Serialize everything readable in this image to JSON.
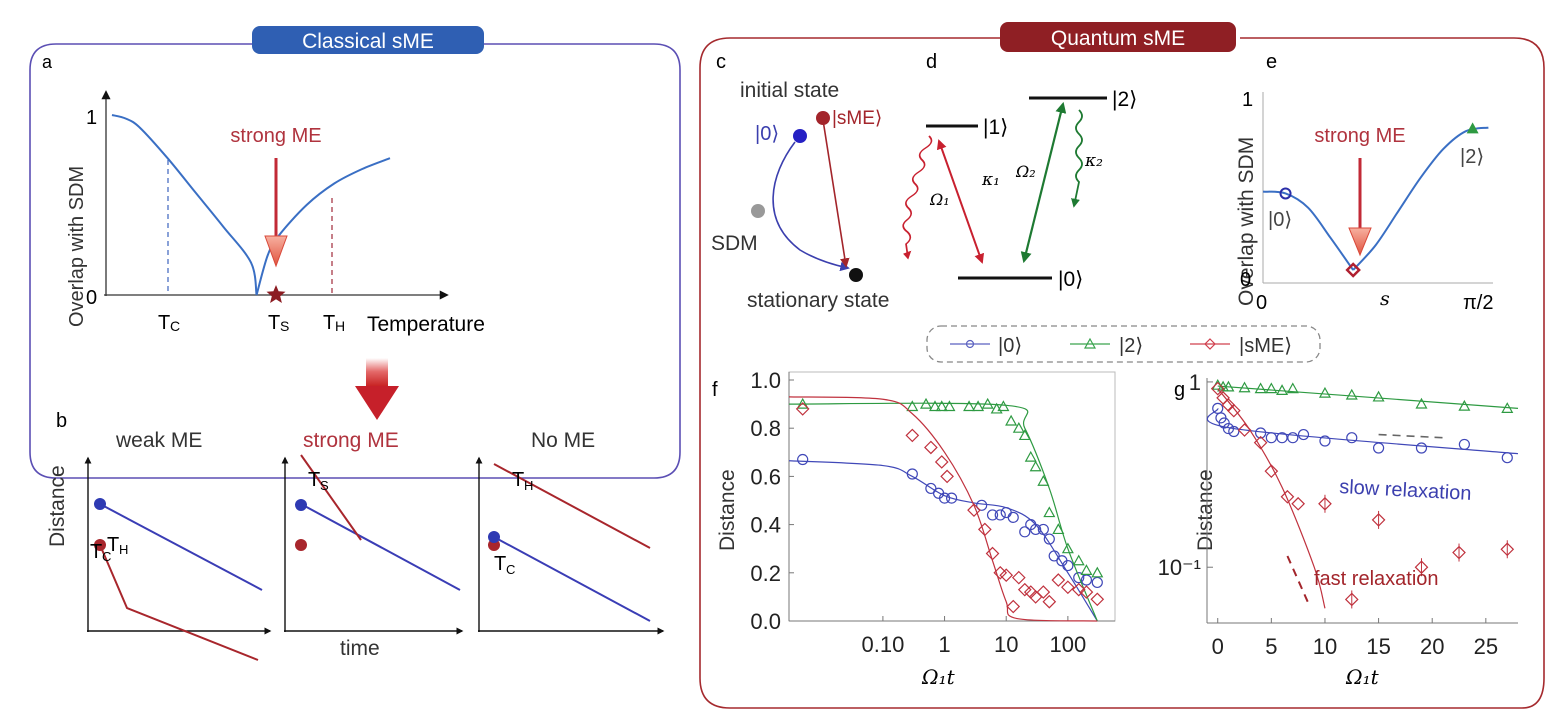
{
  "colors": {
    "classical_accent": "#2b5cad",
    "quantum_accent": "#9b2226",
    "blue": "#3b3fae",
    "red": "#b5282e",
    "green": "#2e8b3c",
    "curve_blue": "#3a6fc4",
    "gray": "#999999"
  },
  "classical": {
    "header": "Classical sME",
    "panel_a": {
      "label": "a",
      "ylabel": "Overlap with SDM",
      "y_ticks": [
        "0",
        "1"
      ],
      "x_ticks": [
        {
          "main": "T",
          "sub": "C"
        },
        {
          "main": "T",
          "sub": "S"
        },
        {
          "main": "T",
          "sub": "H"
        }
      ],
      "xlabel": "Temperature",
      "annotation": "strong ME"
    },
    "panel_b": {
      "label": "b",
      "ylabel": "Distance",
      "xlabel": "time",
      "subpanels": [
        {
          "title": "weak ME",
          "hot": {
            "main": "T",
            "sub": "H"
          },
          "cold": {
            "main": "T",
            "sub": "C"
          }
        },
        {
          "title": "strong ME",
          "hot": {
            "main": "T",
            "sub": "S"
          }
        },
        {
          "title": "No ME",
          "hot": {
            "main": "T",
            "sub": "H"
          },
          "cold": {
            "main": "T",
            "sub": "C"
          }
        }
      ]
    }
  },
  "quantum": {
    "header": "Quantum sME",
    "panel_c": {
      "label": "c",
      "initial_state": "initial state",
      "state0": "|0⟩",
      "stateSME": "|sME⟩",
      "sdm": "SDM",
      "stationary": "stationary state"
    },
    "panel_d": {
      "label": "d",
      "levels": [
        "|1⟩",
        "|2⟩",
        "|0⟩"
      ],
      "omega1": "Ω₁",
      "omega2": "Ω₂",
      "kappa1": "κ₁",
      "kappa2": "κ₂"
    },
    "panel_e": {
      "label": "e",
      "ylabel": "Overlap with SDM",
      "y_ticks": [
        "0",
        "1"
      ],
      "x_ticks": [
        "0",
        "π/2"
      ],
      "xlabel": "s",
      "annotation": "strong ME",
      "marker_labels": [
        "|0⟩",
        "|2⟩"
      ]
    },
    "legend": [
      "|0⟩",
      "|2⟩",
      "|sME⟩"
    ],
    "panel_f": {
      "label": "f",
      "ylabel": "Distance",
      "xlabel": "Ω₁t"
    },
    "panel_g": {
      "label": "g",
      "ylabel": "Distance",
      "xlabel": "Ω₁t",
      "slow_label": "slow relaxation",
      "fast_label": "fast relaxation"
    }
  },
  "chart_data": [
    {
      "id": "a",
      "type": "line",
      "title": "",
      "xlabel": "Temperature",
      "ylabel": "Overlap with SDM",
      "ylim": [
        0,
        1
      ],
      "x_tick_labels": [
        "TC",
        "TS",
        "TH"
      ],
      "series": [
        {
          "name": "overlap",
          "x": [
            0,
            0.05,
            0.1,
            0.2,
            0.3,
            0.4,
            0.5,
            0.52,
            0.56,
            0.6,
            0.7,
            0.8,
            0.9,
            1.0
          ],
          "values": [
            1.0,
            0.98,
            0.93,
            0.76,
            0.57,
            0.38,
            0.18,
            0.0,
            0.22,
            0.33,
            0.5,
            0.62,
            0.7,
            0.76
          ]
        }
      ],
      "annotations": [
        "strong ME at TS"
      ]
    },
    {
      "id": "e",
      "type": "line",
      "xlabel": "s",
      "ylabel": "Overlap with SDM",
      "ylim": [
        0,
        1
      ],
      "x_tick_labels": [
        "0",
        "π/2"
      ],
      "series": [
        {
          "name": "overlap",
          "x": [
            0,
            0.1,
            0.2,
            0.3,
            0.4,
            0.5,
            0.6,
            0.7,
            0.8,
            0.9,
            1.0
          ],
          "values": [
            0.44,
            0.43,
            0.35,
            0.18,
            0.0,
            0.14,
            0.33,
            0.52,
            0.68,
            0.78,
            0.8
          ]
        }
      ],
      "markers": [
        {
          "label": "|0⟩",
          "x": 0.1,
          "y": 0.43
        },
        {
          "label": "|sME⟩",
          "x": 0.4,
          "y": 0.0
        },
        {
          "label": "|2⟩",
          "x": 0.93,
          "y": 0.79
        }
      ]
    },
    {
      "id": "f",
      "type": "scatter",
      "xlabel": "Ω₁t",
      "ylabel": "Distance",
      "xscale": "log",
      "xlim": [
        0.003,
        400
      ],
      "ylim": [
        0,
        1.0
      ],
      "y_ticks": [
        "0.0",
        "0.2",
        "0.4",
        "0.6",
        "0.8",
        "1.0"
      ],
      "x_ticks": [
        "0.10",
        "1",
        "10",
        "100"
      ],
      "series": [
        {
          "name": "|0⟩",
          "x": [
            0.005,
            0.3,
            0.6,
            0.8,
            1.0,
            1.3,
            4,
            6,
            8,
            10,
            13,
            20,
            25,
            30,
            40,
            50,
            60,
            80,
            100,
            150,
            200,
            300
          ],
          "values": [
            0.67,
            0.61,
            0.55,
            0.53,
            0.51,
            0.51,
            0.48,
            0.44,
            0.44,
            0.45,
            0.43,
            0.37,
            0.4,
            0.38,
            0.38,
            0.34,
            0.27,
            0.25,
            0.23,
            0.18,
            0.17,
            0.16
          ],
          "fit": [
            [
              0.003,
              0.665
            ],
            [
              0.1,
              0.645
            ],
            [
              0.3,
              0.6
            ],
            [
              1,
              0.52
            ],
            [
              3,
              0.49
            ],
            [
              10,
              0.47
            ],
            [
              30,
              0.4
            ],
            [
              100,
              0.2
            ],
            [
              300,
              0.0
            ]
          ]
        },
        {
          "name": "|2⟩",
          "x": [
            0.005,
            0.3,
            0.5,
            0.7,
            0.9,
            1.2,
            2.5,
            3.5,
            5,
            7,
            9,
            12,
            16,
            20,
            25,
            30,
            40,
            50,
            70,
            100,
            150,
            200,
            300
          ],
          "values": [
            0.9,
            0.89,
            0.9,
            0.89,
            0.89,
            0.89,
            0.89,
            0.89,
            0.9,
            0.88,
            0.89,
            0.83,
            0.8,
            0.77,
            0.68,
            0.64,
            0.58,
            0.45,
            0.38,
            0.3,
            0.25,
            0.21,
            0.2
          ],
          "fit": [
            [
              0.003,
              0.9
            ],
            [
              10,
              0.895
            ],
            [
              20,
              0.8
            ],
            [
              50,
              0.55
            ],
            [
              100,
              0.3
            ],
            [
              300,
              0.0
            ]
          ]
        },
        {
          "name": "|sME⟩",
          "x": [
            0.005,
            0.3,
            0.6,
            0.9,
            1.1,
            3,
            4.5,
            6,
            8,
            10,
            13,
            16,
            20,
            25,
            30,
            40,
            50,
            70,
            100,
            150,
            200,
            300
          ],
          "values": [
            0.88,
            0.77,
            0.72,
            0.66,
            0.6,
            0.46,
            0.38,
            0.28,
            0.2,
            0.19,
            0.06,
            0.18,
            0.13,
            0.12,
            0.1,
            0.12,
            0.08,
            0.17,
            0.14,
            0.13,
            0.12,
            0.09
          ],
          "fit": [
            [
              0.003,
              0.93
            ],
            [
              0.1,
              0.92
            ],
            [
              0.3,
              0.86
            ],
            [
              1,
              0.7
            ],
            [
              3,
              0.48
            ],
            [
              6,
              0.25
            ],
            [
              10,
              0.08
            ],
            [
              15,
              0.01
            ],
            [
              300,
              0.0
            ]
          ]
        }
      ]
    },
    {
      "id": "g",
      "type": "scatter",
      "xlabel": "Ω₁t",
      "ylabel": "Distance",
      "yscale": "log",
      "xlim": [
        -1,
        28
      ],
      "ylim": [
        0.05,
        1.05
      ],
      "x_ticks": [
        "0",
        "5",
        "10",
        "15",
        "20",
        "25"
      ],
      "y_ticks": [
        "1",
        "10⁻¹"
      ],
      "series": [
        {
          "name": "|0⟩",
          "x": [
            0,
            0.3,
            0.6,
            1,
            1.5,
            4,
            5,
            6,
            7,
            8,
            10,
            12.5,
            15,
            19,
            23,
            27
          ],
          "values": [
            0.72,
            0.64,
            0.6,
            0.56,
            0.54,
            0.53,
            0.5,
            0.5,
            0.5,
            0.52,
            0.48,
            0.5,
            0.44,
            0.44,
            0.46,
            0.39
          ],
          "fit": [
            [
              0,
              0.72
            ],
            [
              1.5,
              0.56
            ],
            [
              28,
              0.41
            ]
          ]
        },
        {
          "name": "|2⟩",
          "x": [
            0,
            0.5,
            1,
            2.5,
            4,
            5,
            6,
            7,
            10,
            12.5,
            15,
            19,
            23,
            27
          ],
          "values": [
            0.96,
            0.94,
            0.94,
            0.93,
            0.92,
            0.92,
            0.9,
            0.92,
            0.87,
            0.85,
            0.83,
            0.76,
            0.74,
            0.72
          ],
          "fit": [
            [
              0,
              0.95
            ],
            [
              28,
              0.72
            ]
          ]
        },
        {
          "name": "|sME⟩",
          "x": [
            0,
            0.5,
            1,
            1.5,
            2.5,
            4,
            5,
            6.5,
            7.5,
            10,
            12.5,
            15,
            19,
            22.5,
            27
          ],
          "values": [
            0.92,
            0.82,
            0.75,
            0.7,
            0.55,
            0.47,
            0.33,
            0.24,
            0.22,
            0.22,
            0.067,
            0.18,
            0.1,
            0.12,
            0.125
          ],
          "fit": [
            [
              0,
              0.92
            ],
            [
              3,
              0.55
            ],
            [
              6,
              0.27
            ],
            [
              9,
              0.1
            ],
            [
              10,
              0.06
            ]
          ]
        }
      ],
      "annotations": [
        "slow relaxation",
        "fast relaxation"
      ]
    }
  ]
}
